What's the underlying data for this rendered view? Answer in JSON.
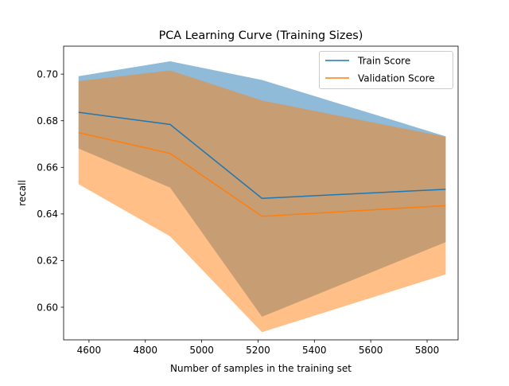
{
  "chart_data": {
    "type": "line",
    "title": "PCA Learning Curve (Training Sizes)",
    "xlabel": "Number of samples in the training set",
    "ylabel": "recall",
    "xlim": [
      4510,
      5910
    ],
    "ylim": [
      0.586,
      0.712
    ],
    "xticks": [
      4600,
      4800,
      5000,
      5200,
      5400,
      5600,
      5800
    ],
    "yticks": [
      0.6,
      0.62,
      0.64,
      0.66,
      0.68,
      0.7
    ],
    "ytick_labels": [
      "0.60",
      "0.62",
      "0.64",
      "0.66",
      "0.68",
      "0.70"
    ],
    "x": [
      4563,
      4888,
      5214,
      5866
    ],
    "grid": false,
    "legend_position": "upper right",
    "series": [
      {
        "name": "Train Score",
        "color": "#1f77b4",
        "band_color": "#1f77b4",
        "band_opacity": 0.5,
        "mean": [
          0.6836,
          0.6784,
          0.6467,
          0.6506
        ],
        "upper": [
          0.6991,
          0.7055,
          0.6975,
          0.6733
        ],
        "lower": [
          0.6681,
          0.6513,
          0.5959,
          0.6279
        ]
      },
      {
        "name": "Validation Score",
        "color": "#ff7f0e",
        "band_color": "#ff7f0e",
        "band_opacity": 0.5,
        "mean": [
          0.6749,
          0.666,
          0.639,
          0.6436
        ],
        "upper": [
          0.697,
          0.7016,
          0.6887,
          0.6731
        ],
        "lower": [
          0.6528,
          0.6304,
          0.5893,
          0.6141
        ]
      }
    ]
  }
}
